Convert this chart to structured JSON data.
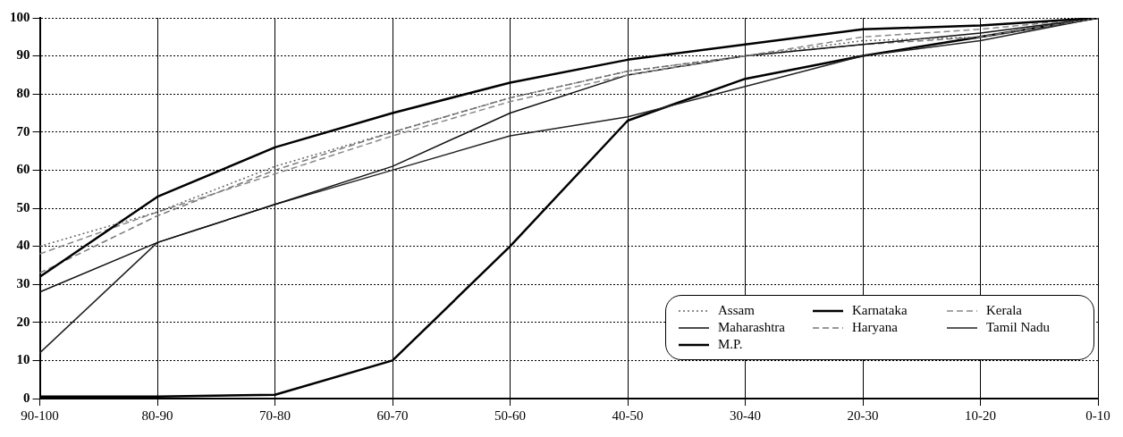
{
  "chart_data": {
    "type": "line",
    "categories": [
      "90-100",
      "80-90",
      "70-80",
      "60-70",
      "50-60",
      "40-50",
      "30-40",
      "20-30",
      "10-20",
      "0-10"
    ],
    "series": [
      {
        "name": "Assam",
        "color": "#666666",
        "line_style": "dotted",
        "values": [
          40,
          49,
          61,
          70,
          79,
          86,
          90,
          94,
          95,
          100
        ]
      },
      {
        "name": "Karnataka",
        "color": "#000000",
        "line_style": "solid",
        "values": [
          32,
          53,
          66,
          75,
          83,
          89,
          93,
          97,
          98,
          100
        ]
      },
      {
        "name": "Kerala",
        "color": "#888888",
        "line_style": "dashed",
        "values": [
          38,
          49,
          59,
          69,
          78,
          85,
          90,
          95,
          97,
          100
        ]
      },
      {
        "name": "Maharashtra",
        "color": "#111111",
        "line_style": "solid",
        "values": [
          28,
          41,
          51,
          61,
          75,
          85,
          90,
          93,
          96,
          100
        ]
      },
      {
        "name": "Haryana",
        "color": "#777777",
        "line_style": "dashed",
        "values": [
          33,
          48,
          60,
          70,
          79,
          86,
          90,
          93,
          95,
          100
        ]
      },
      {
        "name": "Tamil Nadu",
        "color": "#222222",
        "line_style": "solid",
        "values": [
          12,
          41,
          51,
          60,
          69,
          74,
          82,
          90,
          94,
          100
        ]
      },
      {
        "name": "M.P.",
        "color": "#000000",
        "line_style": "solid",
        "values": [
          0.5,
          0.5,
          1,
          10,
          40,
          73,
          84,
          90,
          95,
          100
        ]
      }
    ],
    "ylim": [
      0,
      100
    ],
    "yticks": [
      0,
      10,
      20,
      30,
      40,
      50,
      60,
      70,
      80,
      90,
      100
    ],
    "grid": true,
    "legend": "bottom right"
  }
}
